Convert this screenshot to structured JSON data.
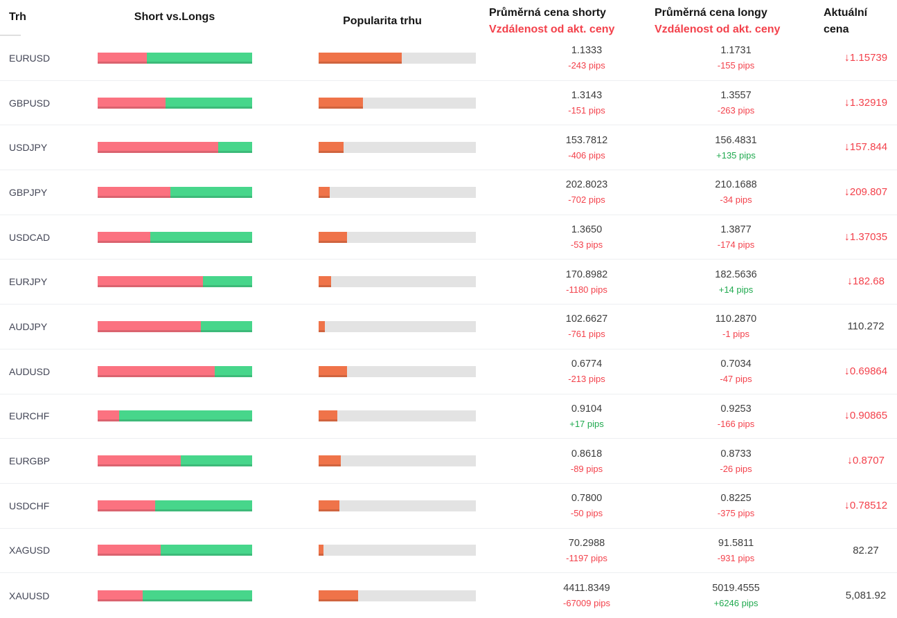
{
  "header": {
    "col_market": "Trh",
    "col_shorts_longs": "Short vs.Longs",
    "col_popularity": "Popularita trhu",
    "col_avg_short_line1": "Průměrná cena shorty",
    "col_avg_long_line1": "Průměrná cena longy",
    "col_distance_line2": "Vzdálenost od akt. ceny",
    "col_current_line1": "Aktuální",
    "col_current_line2": "cena"
  },
  "icons": {
    "down_arrow": "↓"
  },
  "colors": {
    "short_red": "#fb7280",
    "long_green": "#47d68b",
    "popularity_orange": "#ef7349",
    "track_gray": "#e3e3e3",
    "negative_red": "#f3414b",
    "positive_green": "#1fa94e"
  },
  "rows": [
    {
      "market": "EURUSD",
      "short_pct": 32,
      "popularity_pct": 53,
      "avg_short_price": "1.1333",
      "short_distance": "-243 pips",
      "short_distance_tone": "negative",
      "avg_long_price": "1.1731",
      "long_distance": "-155 pips",
      "long_distance_tone": "negative",
      "current_price": "1.15739",
      "current_trend": "down"
    },
    {
      "market": "GBPUSD",
      "short_pct": 44,
      "popularity_pct": 28,
      "avg_short_price": "1.3143",
      "short_distance": "-151 pips",
      "short_distance_tone": "negative",
      "avg_long_price": "1.3557",
      "long_distance": "-263 pips",
      "long_distance_tone": "negative",
      "current_price": "1.32919",
      "current_trend": "down"
    },
    {
      "market": "USDJPY",
      "short_pct": 78,
      "popularity_pct": 16,
      "avg_short_price": "153.7812",
      "short_distance": "-406 pips",
      "short_distance_tone": "negative",
      "avg_long_price": "156.4831",
      "long_distance": "+135 pips",
      "long_distance_tone": "positive",
      "current_price": "157.844",
      "current_trend": "down"
    },
    {
      "market": "GBPJPY",
      "short_pct": 47,
      "popularity_pct": 7,
      "avg_short_price": "202.8023",
      "short_distance": "-702 pips",
      "short_distance_tone": "negative",
      "avg_long_price": "210.1688",
      "long_distance": "-34 pips",
      "long_distance_tone": "negative",
      "current_price": "209.807",
      "current_trend": "down"
    },
    {
      "market": "USDCAD",
      "short_pct": 34,
      "popularity_pct": 18,
      "avg_short_price": "1.3650",
      "short_distance": "-53 pips",
      "short_distance_tone": "negative",
      "avg_long_price": "1.3877",
      "long_distance": "-174 pips",
      "long_distance_tone": "negative",
      "current_price": "1.37035",
      "current_trend": "down"
    },
    {
      "market": "EURJPY",
      "short_pct": 68,
      "popularity_pct": 8,
      "avg_short_price": "170.8982",
      "short_distance": "-1180 pips",
      "short_distance_tone": "negative",
      "avg_long_price": "182.5636",
      "long_distance": "+14 pips",
      "long_distance_tone": "positive",
      "current_price": "182.68",
      "current_trend": "down"
    },
    {
      "market": "AUDJPY",
      "short_pct": 67,
      "popularity_pct": 4,
      "avg_short_price": "102.6627",
      "short_distance": "-761 pips",
      "short_distance_tone": "negative",
      "avg_long_price": "110.2870",
      "long_distance": "-1 pips",
      "long_distance_tone": "negative",
      "current_price": "110.272",
      "current_trend": "none"
    },
    {
      "market": "AUDUSD",
      "short_pct": 76,
      "popularity_pct": 18,
      "avg_short_price": "0.6774",
      "short_distance": "-213 pips",
      "short_distance_tone": "negative",
      "avg_long_price": "0.7034",
      "long_distance": "-47 pips",
      "long_distance_tone": "negative",
      "current_price": "0.69864",
      "current_trend": "down"
    },
    {
      "market": "EURCHF",
      "short_pct": 14,
      "popularity_pct": 12,
      "avg_short_price": "0.9104",
      "short_distance": "+17 pips",
      "short_distance_tone": "positive",
      "avg_long_price": "0.9253",
      "long_distance": "-166 pips",
      "long_distance_tone": "negative",
      "current_price": "0.90865",
      "current_trend": "down"
    },
    {
      "market": "EURGBP",
      "short_pct": 54,
      "popularity_pct": 14,
      "avg_short_price": "0.8618",
      "short_distance": "-89 pips",
      "short_distance_tone": "negative",
      "avg_long_price": "0.8733",
      "long_distance": "-26 pips",
      "long_distance_tone": "negative",
      "current_price": "0.8707",
      "current_trend": "down"
    },
    {
      "market": "USDCHF",
      "short_pct": 37,
      "popularity_pct": 13,
      "avg_short_price": "0.7800",
      "short_distance": "-50 pips",
      "short_distance_tone": "negative",
      "avg_long_price": "0.8225",
      "long_distance": "-375 pips",
      "long_distance_tone": "negative",
      "current_price": "0.78512",
      "current_trend": "down"
    },
    {
      "market": "XAGUSD",
      "short_pct": 41,
      "popularity_pct": 3,
      "avg_short_price": "70.2988",
      "short_distance": "-1197 pips",
      "short_distance_tone": "negative",
      "avg_long_price": "91.5811",
      "long_distance": "-931 pips",
      "long_distance_tone": "negative",
      "current_price": "82.27",
      "current_trend": "none"
    },
    {
      "market": "XAUUSD",
      "short_pct": 29,
      "popularity_pct": 25,
      "avg_short_price": "4411.8349",
      "short_distance": "-67009 pips",
      "short_distance_tone": "negative",
      "avg_long_price": "5019.4555",
      "long_distance": "+6246 pips",
      "long_distance_tone": "positive",
      "current_price": "5,081.92",
      "current_trend": "none"
    }
  ]
}
